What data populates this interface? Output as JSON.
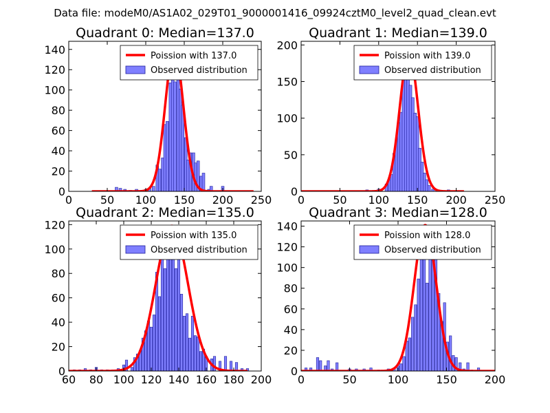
{
  "figure": {
    "suptitle": "Data file: modeM0/AS1A02_029T01_9000001416_09924cztM0_level2_quad_clean.evt"
  },
  "colors": {
    "bar_fill": "#7f7fff",
    "bar_edge": "#1f1f99",
    "curve": "#ff0000",
    "axis": "#000000"
  },
  "chart_data": [
    {
      "type": "bar",
      "title": "Quadrant 0: Median=137.0",
      "xlim": [
        0,
        250
      ],
      "ylim": [
        0,
        148
      ],
      "xticks": [
        0,
        50,
        100,
        150,
        200,
        250
      ],
      "yticks": [
        0,
        20,
        40,
        60,
        80,
        100,
        120,
        140
      ],
      "bin_width": 3.5,
      "bins": [
        [
          62,
          4
        ],
        [
          67,
          3
        ],
        [
          73,
          2
        ],
        [
          80,
          1
        ],
        [
          88,
          2
        ],
        [
          95,
          1
        ],
        [
          100,
          2
        ],
        [
          105,
          3
        ],
        [
          110,
          5
        ],
        [
          115,
          26
        ],
        [
          118,
          22
        ],
        [
          122,
          33
        ],
        [
          125,
          66
        ],
        [
          128,
          69
        ],
        [
          132,
          107
        ],
        [
          135,
          127
        ],
        [
          138,
          108
        ],
        [
          142,
          112
        ],
        [
          145,
          101
        ],
        [
          148,
          85
        ],
        [
          152,
          53
        ],
        [
          155,
          31
        ],
        [
          158,
          38
        ],
        [
          162,
          38
        ],
        [
          165,
          28
        ],
        [
          168,
          30
        ],
        [
          172,
          15
        ],
        [
          175,
          18
        ],
        [
          182,
          2
        ],
        [
          185,
          5
        ],
        [
          200,
          5
        ]
      ],
      "curve": {
        "name": "Poission with 137.0",
        "mean": 137.0,
        "peak": 141,
        "x_range": [
          30,
          240
        ]
      },
      "legend": {
        "entries": [
          "Poission with 137.0",
          "Observed distribution"
        ],
        "placement": "top-right"
      }
    },
    {
      "type": "bar",
      "title": "Quadrant 1: Median=139.0",
      "xlim": [
        0,
        250
      ],
      "ylim": [
        0,
        205
      ],
      "xticks": [
        0,
        50,
        100,
        150,
        200,
        250
      ],
      "yticks": [
        0,
        50,
        100,
        150,
        200
      ],
      "bin_width": 3.5,
      "bins": [
        [
          85,
          2
        ],
        [
          100,
          3
        ],
        [
          103,
          2
        ],
        [
          110,
          10
        ],
        [
          114,
          16
        ],
        [
          117,
          23
        ],
        [
          120,
          52
        ],
        [
          123,
          72
        ],
        [
          126,
          94
        ],
        [
          129,
          108
        ],
        [
          132,
          175
        ],
        [
          135,
          165
        ],
        [
          138,
          190
        ],
        [
          141,
          145
        ],
        [
          144,
          128
        ],
        [
          147,
          107
        ],
        [
          150,
          102
        ],
        [
          153,
          59
        ],
        [
          156,
          40
        ],
        [
          159,
          25
        ],
        [
          162,
          16
        ],
        [
          165,
          8
        ],
        [
          170,
          3
        ],
        [
          175,
          2
        ],
        [
          190,
          2
        ]
      ],
      "curve": {
        "name": "Poission with 139.0",
        "mean": 139.0,
        "peak": 190,
        "x_range": [
          0,
          210
        ]
      },
      "legend": {
        "entries": [
          "Poission with 139.0",
          "Observed distribution"
        ],
        "placement": "top-right"
      }
    },
    {
      "type": "bar",
      "title": "Quadrant 2: Median=135.0",
      "xlim": [
        60,
        200
      ],
      "ylim": [
        0,
        123
      ],
      "xticks": [
        60,
        80,
        100,
        120,
        140,
        160,
        180,
        200
      ],
      "yticks": [
        0,
        20,
        40,
        60,
        80,
        100,
        120
      ],
      "bin_width": 1.75,
      "bins": [
        [
          64,
          1
        ],
        [
          68,
          1
        ],
        [
          72,
          2
        ],
        [
          76,
          1
        ],
        [
          80,
          3
        ],
        [
          84,
          1
        ],
        [
          88,
          1
        ],
        [
          92,
          1
        ],
        [
          96,
          2
        ],
        [
          100,
          5
        ],
        [
          102,
          9
        ],
        [
          106,
          3
        ],
        [
          108,
          11
        ],
        [
          110,
          14
        ],
        [
          112,
          17
        ],
        [
          114,
          27
        ],
        [
          116,
          33
        ],
        [
          118,
          41
        ],
        [
          120,
          36
        ],
        [
          122,
          46
        ],
        [
          124,
          81
        ],
        [
          126,
          61
        ],
        [
          128,
          92
        ],
        [
          130,
          84
        ],
        [
          132,
          99
        ],
        [
          134,
          112
        ],
        [
          136,
          102
        ],
        [
          138,
          84
        ],
        [
          140,
          92
        ],
        [
          142,
          63
        ],
        [
          144,
          45
        ],
        [
          146,
          47
        ],
        [
          148,
          27
        ],
        [
          150,
          45
        ],
        [
          152,
          29
        ],
        [
          154,
          28
        ],
        [
          156,
          16
        ],
        [
          158,
          18
        ],
        [
          160,
          12
        ],
        [
          164,
          10
        ],
        [
          166,
          12
        ],
        [
          170,
          8
        ],
        [
          174,
          12
        ],
        [
          178,
          8
        ],
        [
          182,
          7
        ],
        [
          186,
          2
        ],
        [
          190,
          2
        ]
      ],
      "curve": {
        "name": "Poission with 135.0",
        "mean": 135.0,
        "peak": 119,
        "x_range": [
          60,
          190
        ]
      },
      "legend": {
        "entries": [
          "Poission with 135.0",
          "Observed distribution"
        ],
        "placement": "top-right"
      }
    },
    {
      "type": "bar",
      "title": "Quadrant 3: Median=128.0",
      "xlim": [
        0,
        200
      ],
      "ylim": [
        0,
        145
      ],
      "xticks": [
        0,
        50,
        100,
        150,
        200
      ],
      "yticks": [
        0,
        20,
        40,
        60,
        80,
        100,
        120,
        140
      ],
      "bin_width": 2.5,
      "bins": [
        [
          5,
          3
        ],
        [
          10,
          3
        ],
        [
          17,
          13
        ],
        [
          20,
          10
        ],
        [
          25,
          5
        ],
        [
          28,
          10
        ],
        [
          32,
          2
        ],
        [
          37,
          8
        ],
        [
          50,
          2
        ],
        [
          57,
          2
        ],
        [
          65,
          2
        ],
        [
          72,
          3
        ],
        [
          80,
          1
        ],
        [
          90,
          2
        ],
        [
          96,
          2
        ],
        [
          100,
          5
        ],
        [
          103,
          7
        ],
        [
          106,
          14
        ],
        [
          109,
          29
        ],
        [
          112,
          32
        ],
        [
          115,
          52
        ],
        [
          118,
          64
        ],
        [
          121,
          89
        ],
        [
          124,
          108
        ],
        [
          127,
          110
        ],
        [
          130,
          85
        ],
        [
          133,
          108
        ],
        [
          136,
          120
        ],
        [
          139,
          110
        ],
        [
          142,
          75
        ],
        [
          145,
          48
        ],
        [
          148,
          66
        ],
        [
          151,
          28
        ],
        [
          154,
          34
        ],
        [
          157,
          15
        ],
        [
          160,
          13
        ],
        [
          164,
          8
        ],
        [
          168,
          2
        ],
        [
          172,
          8
        ],
        [
          176,
          1
        ],
        [
          183,
          3
        ]
      ],
      "curve": {
        "name": "Poission with 128.0",
        "mean": 128.0,
        "peak": 141,
        "x_range": [
          0,
          200
        ]
      },
      "legend": {
        "entries": [
          "Poission with 128.0",
          "Observed distribution"
        ],
        "placement": "top-right"
      }
    }
  ]
}
